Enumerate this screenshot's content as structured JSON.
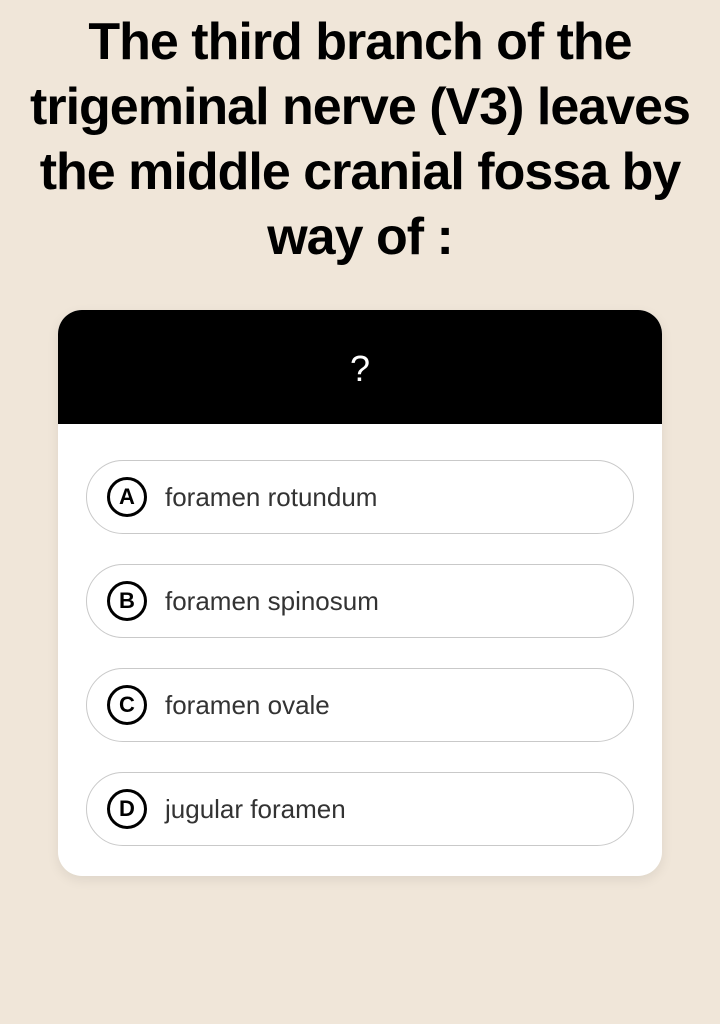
{
  "page": {
    "background_color": "#f0e6d9"
  },
  "question": {
    "title": "The third branch of the trigeminal nerve (V3) leaves the middle cranial fossa by way of :",
    "title_fontsize": 52,
    "title_fontweight": 800,
    "title_color": "#000000"
  },
  "card": {
    "background_color": "#ffffff",
    "border_radius": 24,
    "header": {
      "text": "?",
      "background_color": "#000000",
      "text_color": "#ffffff",
      "fontsize": 36
    },
    "option_style": {
      "border_color": "#c9c9c9",
      "border_radius": 40,
      "letter_border_color": "#000000",
      "letter_fontsize": 22,
      "text_fontsize": 26,
      "text_color": "#333333"
    },
    "options": [
      {
        "letter": "A",
        "text": "foramen rotundum"
      },
      {
        "letter": "B",
        "text": "foramen spinosum"
      },
      {
        "letter": "C",
        "text": "foramen ovale"
      },
      {
        "letter": "D",
        "text": "jugular foramen"
      }
    ]
  }
}
